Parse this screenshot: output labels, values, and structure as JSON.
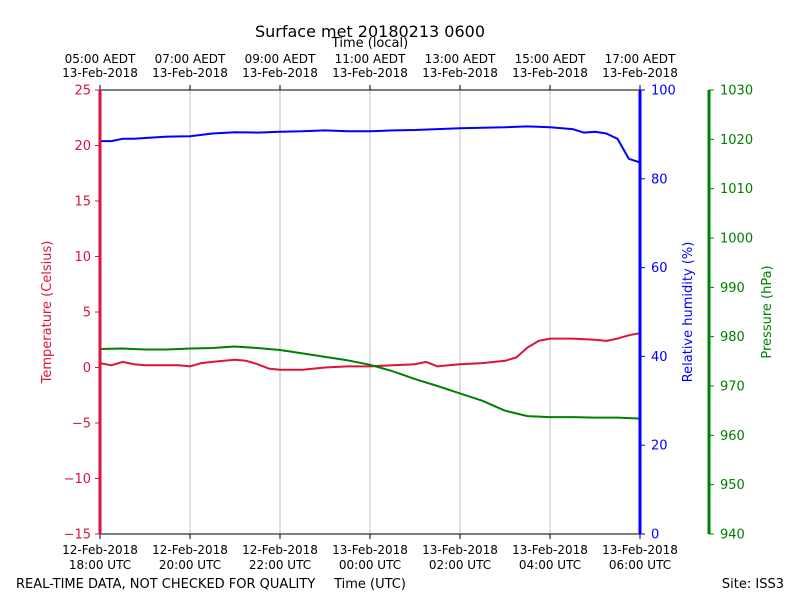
{
  "chart_data": {
    "type": "line",
    "title": "Surface met 20180213 0600",
    "top_axis_label": "Time (local)",
    "top_ticks": [
      {
        "line1": "05:00 AEDT",
        "line2": "13-Feb-2018"
      },
      {
        "line1": "07:00 AEDT",
        "line2": "13-Feb-2018"
      },
      {
        "line1": "09:00 AEDT",
        "line2": "13-Feb-2018"
      },
      {
        "line1": "11:00 AEDT",
        "line2": "13-Feb-2018"
      },
      {
        "line1": "13:00 AEDT",
        "line2": "13-Feb-2018"
      },
      {
        "line1": "15:00 AEDT",
        "line2": "13-Feb-2018"
      },
      {
        "line1": "17:00 AEDT",
        "line2": "13-Feb-2018"
      }
    ],
    "xlabel": "Time (UTC)",
    "x_ticks": [
      {
        "hour": 0,
        "line1": "12-Feb-2018",
        "line2": "18:00 UTC"
      },
      {
        "hour": 2,
        "line1": "12-Feb-2018",
        "line2": "20:00 UTC"
      },
      {
        "hour": 4,
        "line1": "12-Feb-2018",
        "line2": "22:00 UTC"
      },
      {
        "hour": 6,
        "line1": "13-Feb-2018",
        "line2": "00:00 UTC"
      },
      {
        "hour": 8,
        "line1": "13-Feb-2018",
        "line2": "02:00 UTC"
      },
      {
        "hour": 10,
        "line1": "13-Feb-2018",
        "line2": "04:00 UTC"
      },
      {
        "hour": 12,
        "line1": "13-Feb-2018",
        "line2": "06:00 UTC"
      }
    ],
    "xlim_hours": [
      0,
      12
    ],
    "grid_vertical": true,
    "axes": {
      "temperature": {
        "label": "Temperature (Celsius)",
        "color": "#dc143c",
        "ylim": [
          -15,
          25
        ],
        "ticks": [
          "−15",
          "−10",
          "−5",
          "0",
          "5",
          "10",
          "15",
          "20",
          "25"
        ],
        "tick_values": [
          -15,
          -10,
          -5,
          0,
          5,
          10,
          15,
          20,
          25
        ]
      },
      "humidity": {
        "label": "Relative humidity (%)",
        "color": "#0000ff",
        "ylim": [
          0,
          100
        ],
        "ticks": [
          "0",
          "20",
          "40",
          "60",
          "80",
          "100"
        ],
        "tick_values": [
          0,
          20,
          40,
          60,
          80,
          100
        ]
      },
      "pressure": {
        "label": "Pressure (hPa)",
        "color": "#008000",
        "ylim": [
          940,
          1030
        ],
        "ticks": [
          "940",
          "950",
          "960",
          "970",
          "980",
          "990",
          "1000",
          "1010",
          "1020",
          "1030"
        ],
        "tick_values": [
          940,
          950,
          960,
          970,
          980,
          990,
          1000,
          1010,
          1020,
          1030
        ]
      }
    },
    "series": [
      {
        "name": "Temperature",
        "axis": "temperature",
        "color": "#dc143c",
        "x": [
          0,
          0.25,
          0.5,
          0.75,
          1,
          1.25,
          1.5,
          1.75,
          2,
          2.25,
          2.5,
          2.75,
          3,
          3.25,
          3.5,
          3.75,
          4,
          4.25,
          4.5,
          5,
          5.5,
          6,
          6.5,
          7,
          7.25,
          7.5,
          7.75,
          8,
          8.5,
          9,
          9.25,
          9.5,
          9.75,
          10,
          10.5,
          11,
          11.25,
          11.5,
          11.75,
          12
        ],
        "values": [
          0.4,
          0.2,
          0.5,
          0.3,
          0.2,
          0.2,
          0.2,
          0.2,
          0.1,
          0.4,
          0.5,
          0.6,
          0.7,
          0.6,
          0.3,
          -0.1,
          -0.2,
          -0.2,
          -0.2,
          0.0,
          0.1,
          0.1,
          0.2,
          0.3,
          0.5,
          0.1,
          0.2,
          0.3,
          0.4,
          0.6,
          0.9,
          1.8,
          2.4,
          2.6,
          2.6,
          2.5,
          2.4,
          2.6,
          2.9,
          3.1
        ]
      },
      {
        "name": "Relative humidity",
        "axis": "humidity",
        "color": "#0000ff",
        "x": [
          0,
          0.25,
          0.5,
          0.75,
          1,
          1.5,
          2,
          2.5,
          3,
          3.5,
          4,
          4.5,
          5,
          5.5,
          6,
          6.5,
          7,
          7.5,
          8,
          8.5,
          9,
          9.5,
          10,
          10.5,
          10.75,
          11,
          11.25,
          11.5,
          11.75,
          12
        ],
        "values": [
          88.5,
          88.5,
          89.0,
          89.0,
          89.2,
          89.5,
          89.6,
          90.2,
          90.5,
          90.4,
          90.6,
          90.7,
          90.9,
          90.7,
          90.7,
          90.9,
          91.0,
          91.2,
          91.4,
          91.5,
          91.6,
          91.8,
          91.6,
          91.2,
          90.4,
          90.6,
          90.2,
          89.0,
          84.5,
          83.7
        ]
      },
      {
        "name": "Pressure",
        "axis": "pressure",
        "color": "#008000",
        "x": [
          0,
          0.5,
          1,
          1.5,
          2,
          2.5,
          3,
          3.5,
          4,
          4.5,
          5,
          5.5,
          6,
          6.5,
          7,
          7.5,
          8,
          8.5,
          9,
          9.5,
          10,
          10.5,
          11,
          11.5,
          12
        ],
        "values": [
          977.5,
          977.6,
          977.4,
          977.4,
          977.6,
          977.7,
          978.0,
          977.7,
          977.3,
          976.6,
          975.9,
          975.2,
          974.3,
          973.0,
          971.4,
          970.0,
          968.5,
          967.0,
          965.0,
          963.9,
          963.7,
          963.7,
          963.6,
          963.6,
          963.4
        ]
      }
    ],
    "footer_left": "REAL-TIME DATA, NOT CHECKED FOR QUALITY",
    "footer_right": "Site: ISS3"
  }
}
